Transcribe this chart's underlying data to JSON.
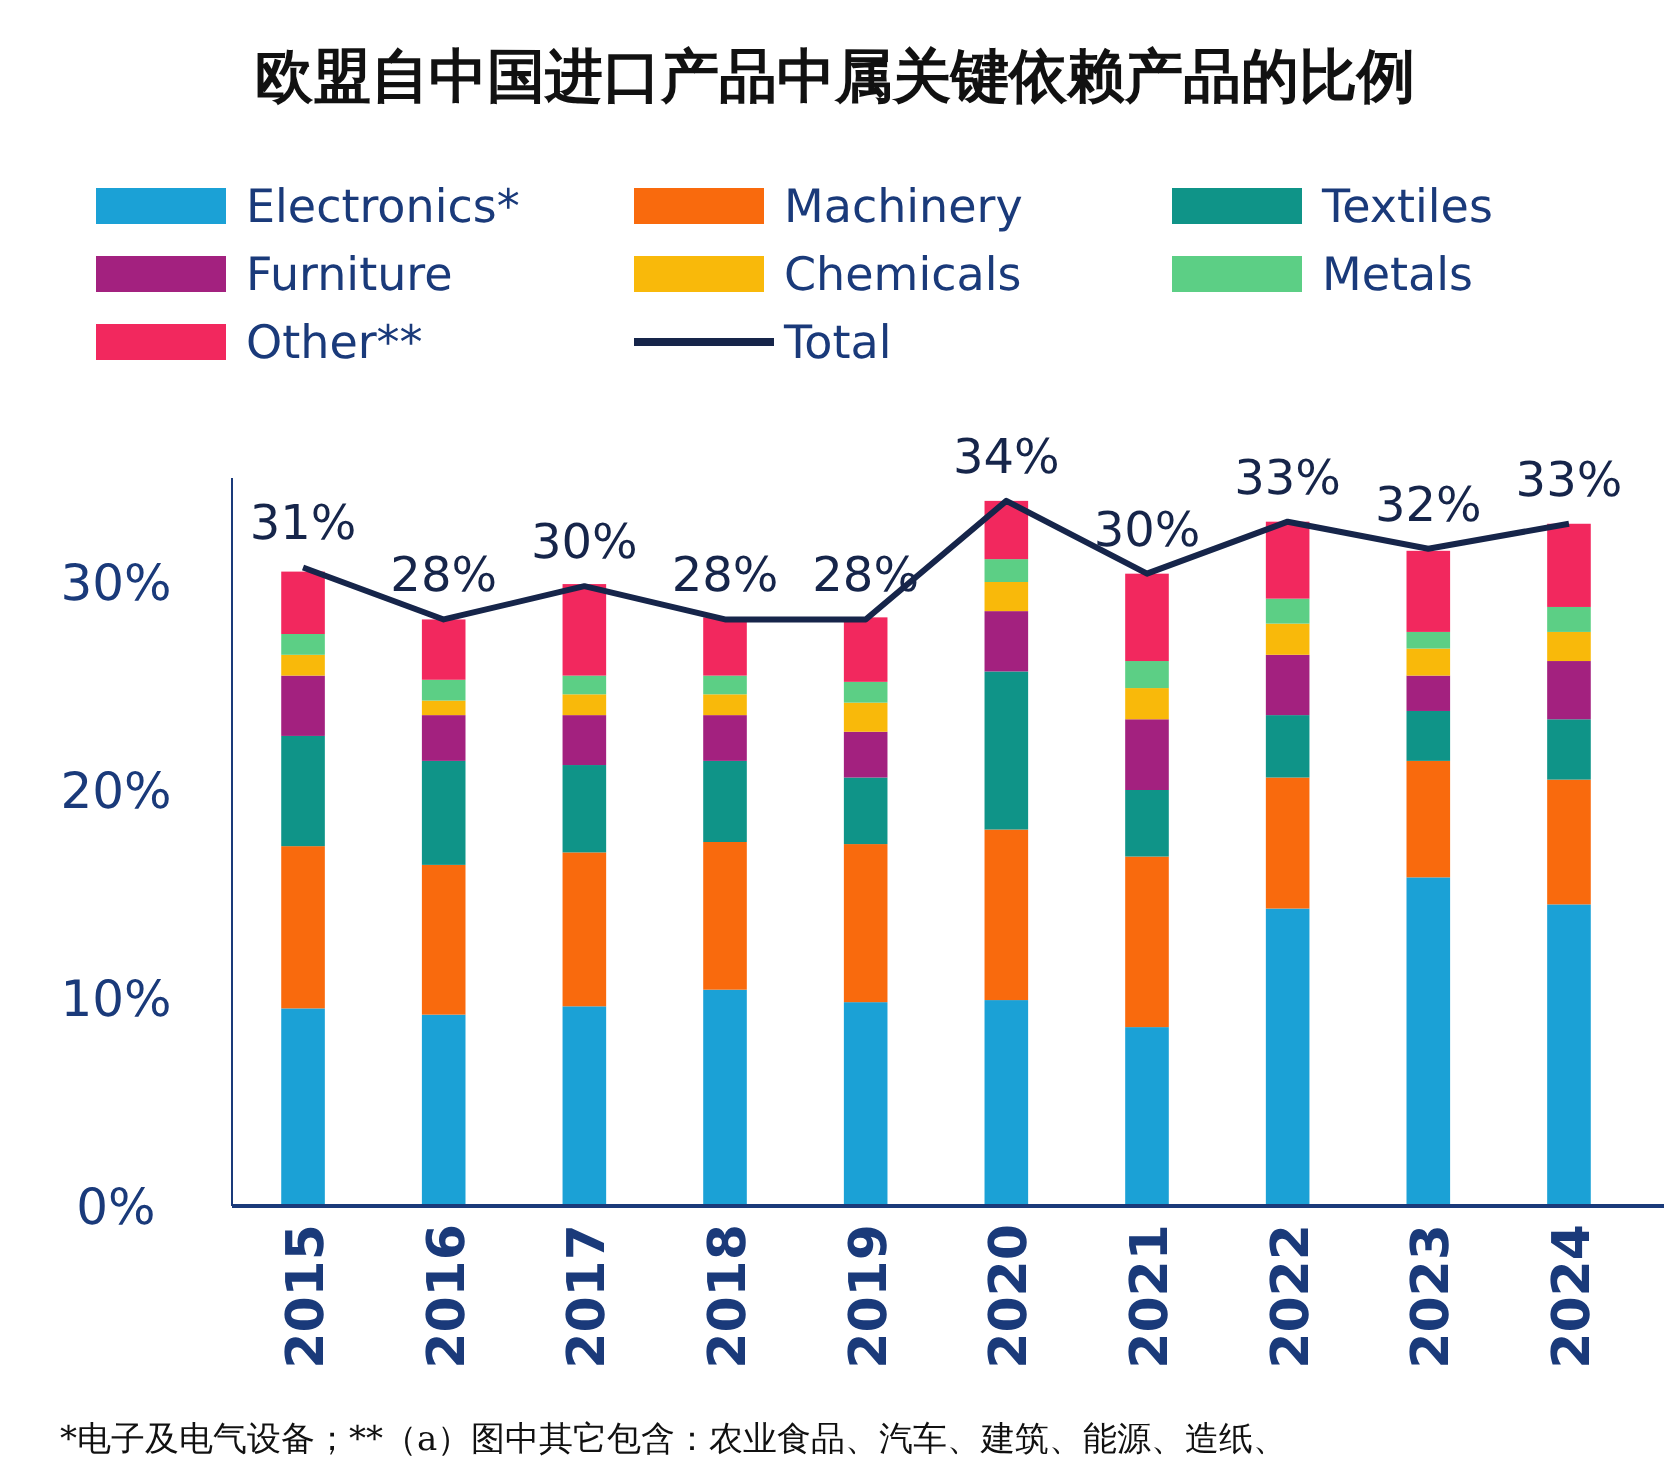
{
  "chart_data": {
    "type": "bar",
    "title": "欧盟自中国进口产品中属关键依赖产品的比例",
    "categories": [
      "2015",
      "2016",
      "2017",
      "2018",
      "2019",
      "2020",
      "2021",
      "2022",
      "2023",
      "2024"
    ],
    "stacked": true,
    "series": [
      {
        "name": "Electronics*",
        "color": "#1ba1d6",
        "values": [
          9.5,
          9.2,
          9.6,
          10.4,
          9.8,
          9.9,
          8.6,
          14.3,
          15.8,
          14.5
        ]
      },
      {
        "name": "Machinery",
        "color": "#f96a0d",
        "values": [
          7.8,
          7.2,
          7.4,
          7.1,
          7.6,
          8.2,
          8.2,
          6.3,
          5.6,
          6.0
        ]
      },
      {
        "name": "Textiles",
        "color": "#0f9488",
        "values": [
          5.3,
          5.0,
          4.2,
          3.9,
          3.2,
          7.6,
          3.2,
          3.0,
          2.4,
          2.9
        ]
      },
      {
        "name": "Furniture",
        "color": "#a3217f",
        "values": [
          2.9,
          2.2,
          2.4,
          2.2,
          2.2,
          2.9,
          3.4,
          2.9,
          1.7,
          2.8
        ]
      },
      {
        "name": "Chemicals",
        "color": "#f9b90a",
        "values": [
          1.0,
          0.7,
          1.0,
          1.0,
          1.4,
          1.4,
          1.5,
          1.5,
          1.3,
          1.4
        ]
      },
      {
        "name": "Metals",
        "color": "#5ccf85",
        "values": [
          1.0,
          1.0,
          0.9,
          0.9,
          1.0,
          1.1,
          1.3,
          1.2,
          0.8,
          1.2
        ]
      },
      {
        "name": "Other**",
        "color": "#f2285e",
        "values": [
          3.0,
          2.9,
          4.4,
          2.8,
          3.1,
          2.8,
          4.2,
          3.7,
          3.9,
          4.0
        ]
      },
      {
        "name": "Total",
        "type": "line",
        "color": "#16254a",
        "values": [
          30.7,
          28.2,
          29.8,
          28.2,
          28.2,
          33.9,
          30.4,
          32.9,
          31.6,
          32.8
        ],
        "value_labels": [
          "31%",
          "28%",
          "30%",
          "28%",
          "28%",
          "34%",
          "30%",
          "33%",
          "32%",
          "33%"
        ]
      }
    ],
    "ylim": [
      0,
      35
    ],
    "yticks": [
      {
        "value": 0,
        "label": "0%"
      },
      {
        "value": 10,
        "label": "10%"
      },
      {
        "value": 20,
        "label": "20%"
      },
      {
        "value": 30,
        "label": "30%"
      }
    ],
    "grid": false,
    "legend": "top",
    "marker": "none",
    "annotations": [
      "*电子及电气设备；**（a）图中其它包含：农业食品、汽车、建筑、能源、造纸、"
    ]
  }
}
